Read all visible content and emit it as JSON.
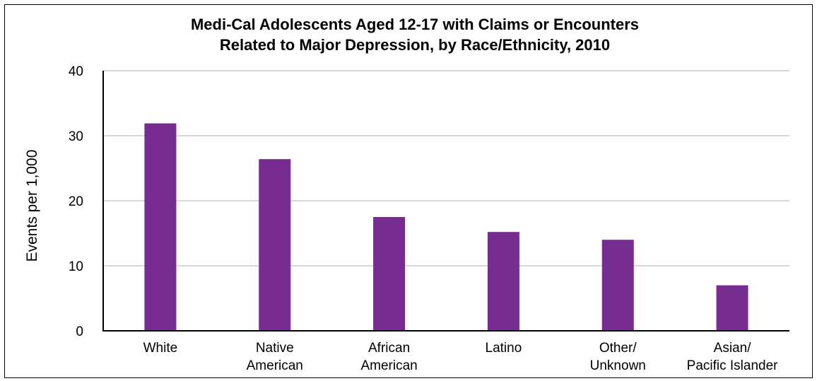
{
  "chart_data": {
    "type": "bar",
    "title": [
      "Medi-Cal Adolescents Aged 12-17 with Claims or Encounters",
      "Related to Major Depression, by Race/Ethnicity, 2010"
    ],
    "xlabel": "",
    "ylabel": "Events per 1,000",
    "categories": [
      [
        "White"
      ],
      [
        "Native",
        "American"
      ],
      [
        "African",
        "American"
      ],
      [
        "Latino"
      ],
      [
        "Other/",
        "Unknown"
      ],
      [
        "Asian/",
        "Pacific Islander"
      ]
    ],
    "values": [
      31.9,
      26.4,
      17.5,
      15.2,
      14.0,
      7.0
    ],
    "ylim": [
      0,
      40
    ],
    "yticks": [
      0,
      10,
      20,
      30,
      40
    ],
    "grid": true,
    "legend": "none",
    "colors": {
      "bar": "#772d8f",
      "grid": "#d9d9d9",
      "axis": "#000000"
    }
  }
}
